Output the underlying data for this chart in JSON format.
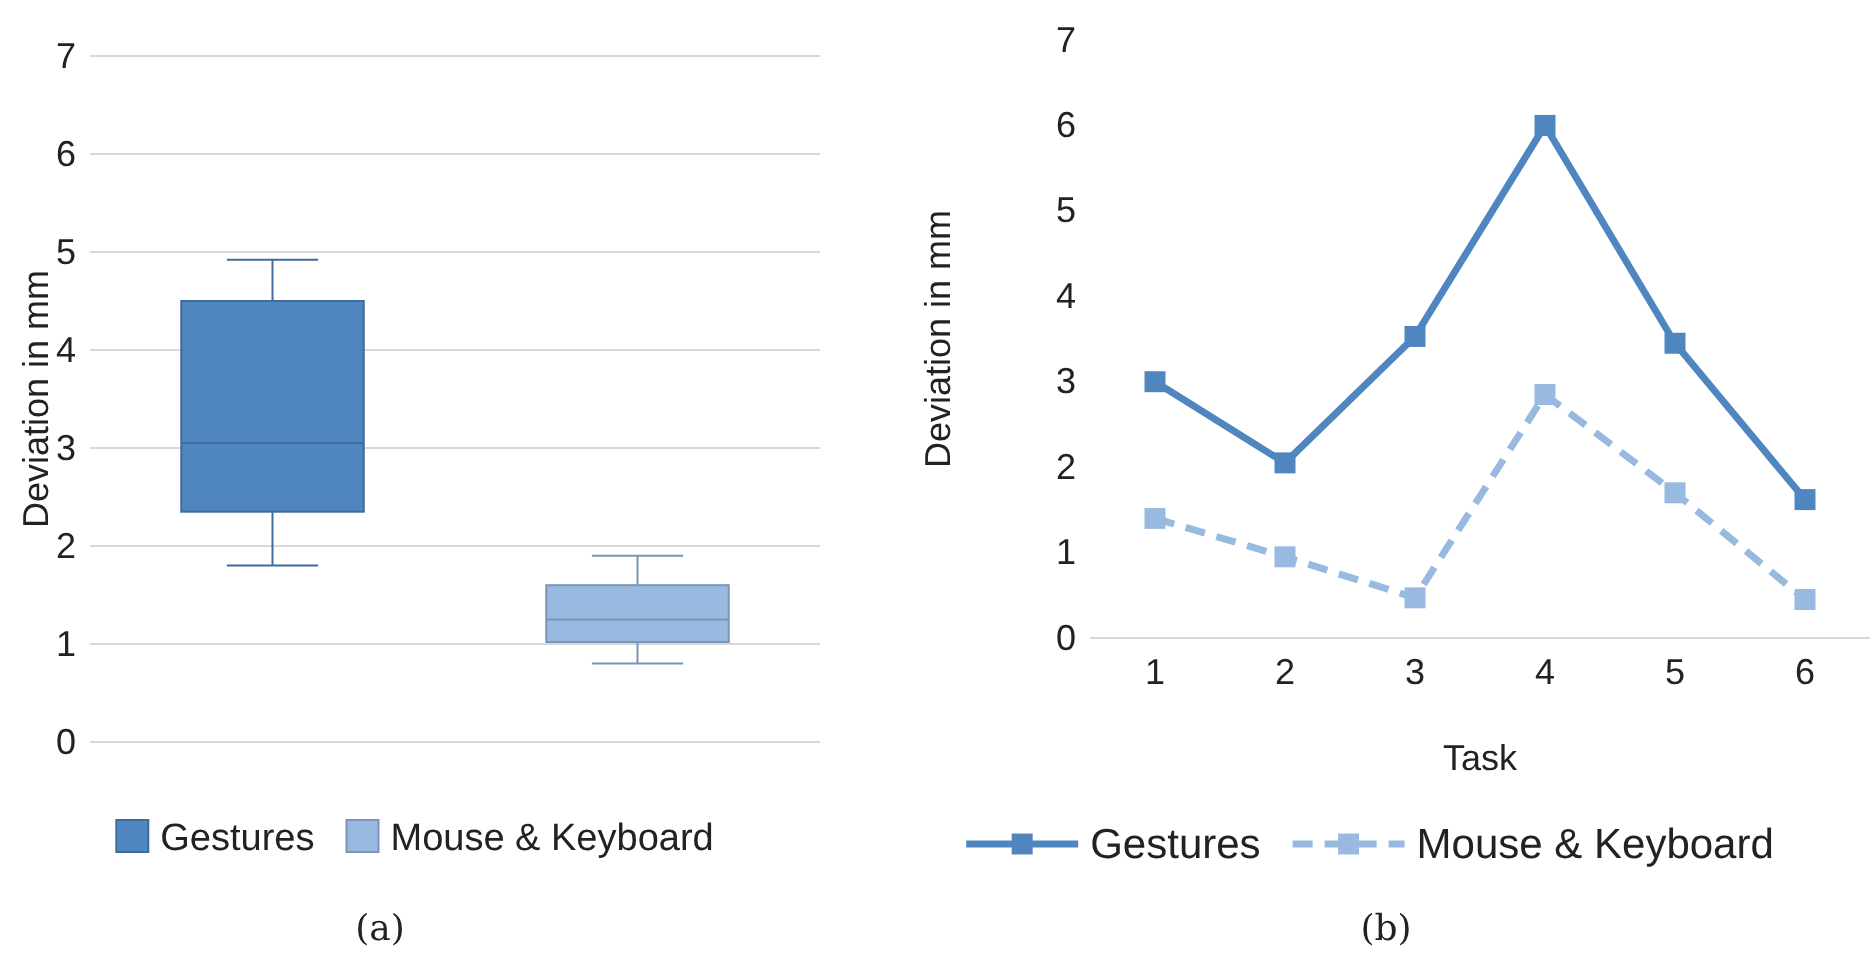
{
  "chart_data": [
    {
      "type": "box",
      "categories": [
        null,
        null
      ],
      "ylabel": "Deviation in mm",
      "ylim": [
        0,
        7
      ],
      "yticks": [
        0,
        1,
        2,
        3,
        4,
        5,
        6,
        7
      ],
      "grid": "y",
      "legend": "bottom",
      "annotations": [
        "(a)"
      ],
      "series": [
        {
          "name": "Gestures",
          "color": "#4f86c0",
          "boxes": [
            {
              "low": 1.8,
              "q1": 2.35,
              "median": 3.05,
              "q3": 4.5,
              "high": 4.92
            },
            null
          ]
        },
        {
          "name": "Mouse & Keyboard",
          "color": "#98b9e0",
          "boxes": [
            null,
            {
              "low": 0.8,
              "q1": 1.02,
              "median": 1.25,
              "q3": 1.6,
              "high": 1.9
            }
          ]
        }
      ]
    },
    {
      "type": "line",
      "categories": [
        "1",
        "2",
        "3",
        "4",
        "5",
        "6"
      ],
      "xlabel": "Task",
      "ylabel": "Deviation in mm",
      "ylim": [
        0,
        7
      ],
      "yticks": [
        0,
        1,
        2,
        3,
        4,
        5,
        6,
        7
      ],
      "grid": false,
      "legend": "bottom",
      "marker": "square",
      "annotations": [
        "(b)"
      ],
      "series": [
        {
          "name": "Gestures",
          "color": "#4f86c0",
          "line_style": "solid",
          "values": [
            3.0,
            2.05,
            3.53,
            6.0,
            3.45,
            1.62
          ]
        },
        {
          "name": "Mouse & Keyboard",
          "color": "#98b9e0",
          "line_style": "dashed",
          "values": [
            1.4,
            0.95,
            0.47,
            2.85,
            1.7,
            0.45
          ]
        }
      ]
    }
  ]
}
